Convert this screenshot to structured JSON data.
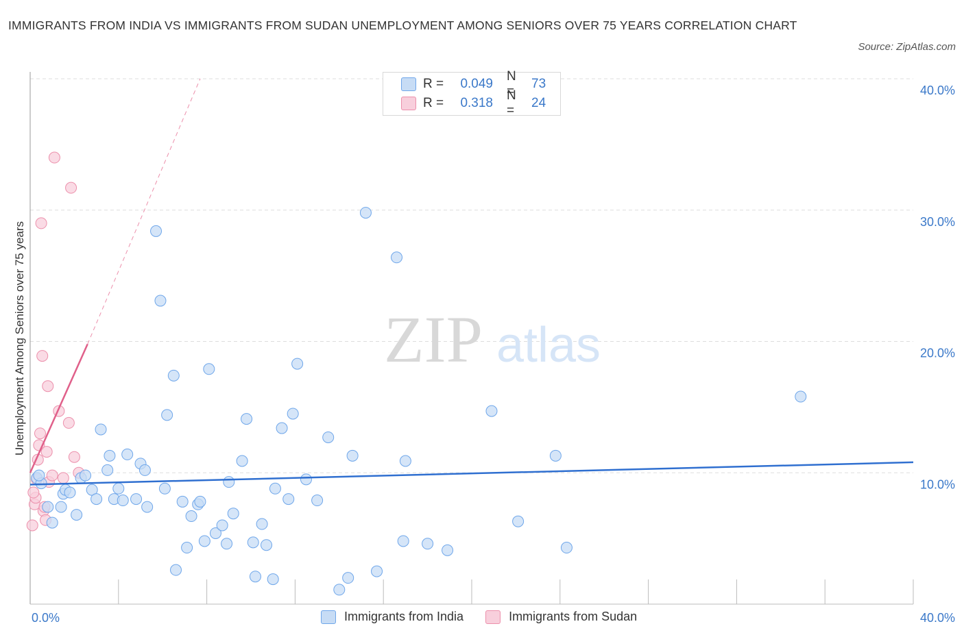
{
  "title": "IMMIGRANTS FROM INDIA VS IMMIGRANTS FROM SUDAN UNEMPLOYMENT AMONG SENIORS OVER 75 YEARS CORRELATION CHART",
  "source": "Source: ZipAtlas.com",
  "watermark": {
    "zip": "ZIP",
    "atlas": "atlas"
  },
  "colors": {
    "india": "#6ea6ea",
    "india_fill": "#c7dcf5",
    "india_line": "#2f6fd0",
    "sudan": "#ec8fab",
    "sudan_fill": "#f8cfdc",
    "sudan_line": "#e0608a",
    "axis_text": "#3a78c9"
  },
  "legend": {
    "india": {
      "r_label": "R =",
      "r_value": "0.049",
      "n_label": "N =",
      "n_value": "73"
    },
    "sudan": {
      "r_label": "R =",
      "r_value": "0.318",
      "n_label": "N =",
      "n_value": "24"
    }
  },
  "bottom_legend": {
    "india": "Immigrants from India",
    "sudan": "Immigrants from Sudan"
  },
  "chart_data": {
    "type": "scatter",
    "title": "IMMIGRANTS FROM INDIA VS IMMIGRANTS FROM SUDAN UNEMPLOYMENT AMONG SENIORS OVER 75 YEARS CORRELATION CHART",
    "xlabel": "",
    "ylabel": "Unemployment Among Seniors over 75 years",
    "xlim": [
      0,
      40
    ],
    "ylim": [
      0,
      40
    ],
    "x_tick_labels": [
      "0.0%",
      "40.0%"
    ],
    "y_tick_labels": [
      "10.0%",
      "20.0%",
      "30.0%",
      "40.0%"
    ],
    "y_ticks": [
      10,
      20,
      30,
      40
    ],
    "grid": true,
    "legend_position": "top-center",
    "series": [
      {
        "name": "Immigrants from India",
        "r": 0.049,
        "n": 73,
        "trend": {
          "x": [
            0,
            40
          ],
          "y": [
            9.1,
            10.8
          ]
        },
        "points": [
          [
            0.3,
            9.6
          ],
          [
            0.5,
            9.2
          ],
          [
            0.8,
            7.4
          ],
          [
            1.0,
            6.2
          ],
          [
            1.4,
            7.4
          ],
          [
            1.5,
            8.4
          ],
          [
            1.6,
            8.7
          ],
          [
            1.8,
            8.5
          ],
          [
            2.1,
            6.8
          ],
          [
            2.3,
            9.6
          ],
          [
            2.5,
            9.8
          ],
          [
            2.8,
            8.7
          ],
          [
            3.0,
            8.0
          ],
          [
            3.2,
            13.3
          ],
          [
            3.5,
            10.2
          ],
          [
            3.6,
            11.3
          ],
          [
            3.8,
            8.0
          ],
          [
            4.0,
            8.8
          ],
          [
            4.2,
            7.9
          ],
          [
            4.4,
            11.4
          ],
          [
            4.8,
            8.0
          ],
          [
            5.0,
            10.7
          ],
          [
            5.2,
            10.2
          ],
          [
            5.3,
            7.4
          ],
          [
            5.7,
            28.4
          ],
          [
            5.9,
            23.1
          ],
          [
            6.1,
            8.8
          ],
          [
            6.2,
            14.4
          ],
          [
            6.5,
            17.4
          ],
          [
            6.6,
            2.6
          ],
          [
            6.9,
            7.8
          ],
          [
            7.1,
            4.3
          ],
          [
            7.3,
            6.7
          ],
          [
            7.6,
            7.6
          ],
          [
            7.7,
            7.8
          ],
          [
            7.9,
            4.8
          ],
          [
            8.1,
            17.9
          ],
          [
            8.4,
            5.4
          ],
          [
            8.7,
            6.0
          ],
          [
            8.9,
            4.6
          ],
          [
            9.0,
            9.3
          ],
          [
            9.2,
            6.9
          ],
          [
            9.6,
            10.9
          ],
          [
            9.8,
            14.1
          ],
          [
            10.1,
            4.7
          ],
          [
            10.2,
            2.1
          ],
          [
            10.5,
            6.1
          ],
          [
            10.7,
            4.5
          ],
          [
            11.0,
            1.9
          ],
          [
            11.1,
            8.8
          ],
          [
            11.4,
            13.4
          ],
          [
            11.7,
            8.0
          ],
          [
            11.9,
            14.5
          ],
          [
            12.1,
            18.3
          ],
          [
            12.5,
            9.5
          ],
          [
            13.0,
            7.9
          ],
          [
            13.5,
            12.7
          ],
          [
            14.0,
            1.1
          ],
          [
            14.4,
            2.0
          ],
          [
            14.6,
            11.3
          ],
          [
            15.2,
            29.8
          ],
          [
            15.7,
            2.5
          ],
          [
            16.6,
            26.4
          ],
          [
            16.9,
            4.8
          ],
          [
            17.0,
            10.9
          ],
          [
            18.0,
            4.6
          ],
          [
            18.9,
            4.1
          ],
          [
            20.9,
            14.7
          ],
          [
            22.1,
            6.3
          ],
          [
            23.8,
            11.3
          ],
          [
            24.3,
            4.3
          ],
          [
            34.9,
            15.8
          ],
          [
            0.4,
            9.8
          ]
        ]
      },
      {
        "name": "Immigrants from Sudan",
        "r": 0.318,
        "n": 24,
        "trend": {
          "x": [
            0,
            2.6
          ],
          "y": [
            10.0,
            19.8
          ]
        },
        "trend_extended": {
          "x": [
            2.6,
            7.7
          ],
          "y": [
            19.8,
            40.0
          ]
        },
        "points": [
          [
            0.1,
            6.0
          ],
          [
            0.2,
            7.6
          ],
          [
            0.25,
            8.1
          ],
          [
            0.3,
            9.5
          ],
          [
            0.35,
            11.0
          ],
          [
            0.4,
            12.1
          ],
          [
            0.45,
            13.0
          ],
          [
            0.5,
            29.0
          ],
          [
            0.55,
            18.9
          ],
          [
            0.6,
            7.1
          ],
          [
            0.7,
            6.4
          ],
          [
            0.75,
            11.6
          ],
          [
            0.8,
            16.6
          ],
          [
            0.85,
            9.3
          ],
          [
            1.0,
            9.8
          ],
          [
            1.1,
            34.0
          ],
          [
            1.3,
            14.7
          ],
          [
            1.5,
            9.6
          ],
          [
            1.75,
            13.8
          ],
          [
            1.85,
            31.7
          ],
          [
            2.0,
            11.2
          ],
          [
            2.2,
            10.0
          ],
          [
            0.15,
            8.5
          ],
          [
            0.65,
            7.4
          ]
        ]
      }
    ]
  }
}
